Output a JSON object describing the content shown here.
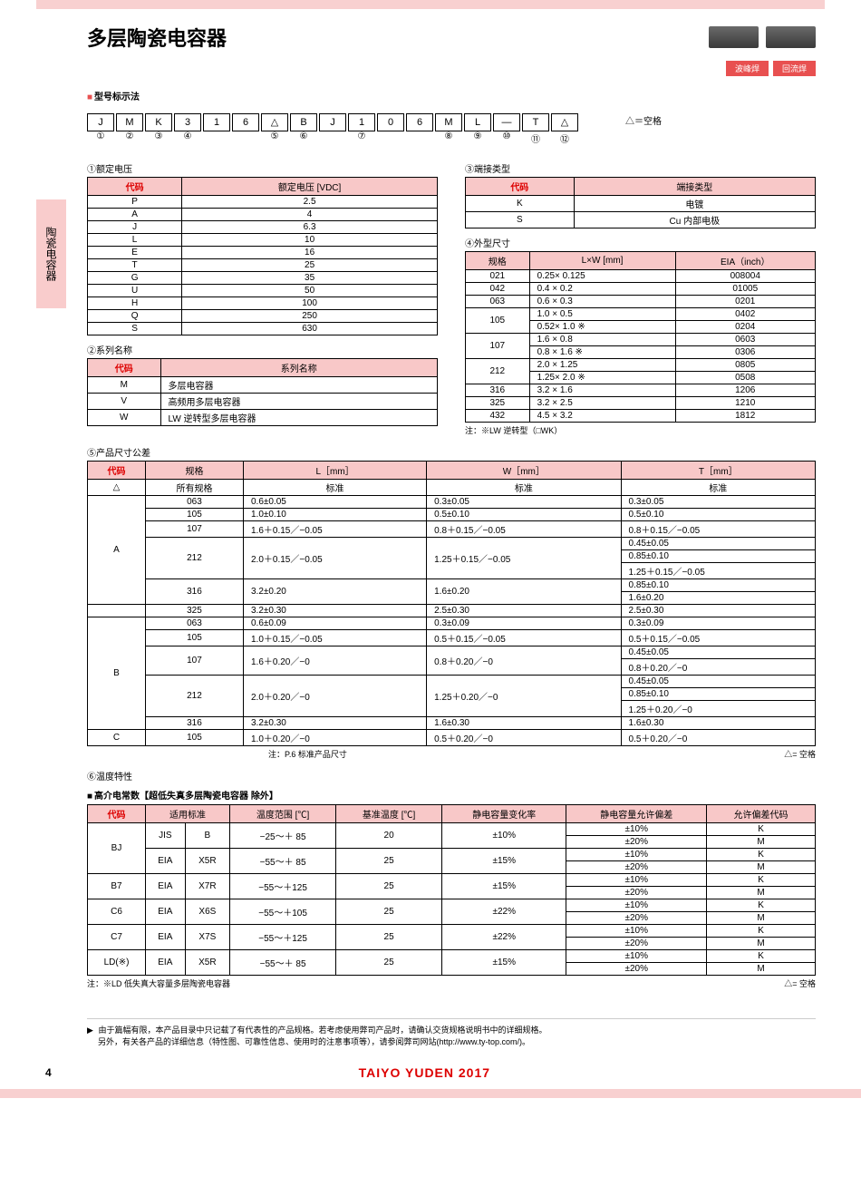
{
  "title": "多层陶瓷电容器",
  "badges": [
    "波峰焊",
    "回流焊"
  ],
  "sideTab": "陶瓷电容器",
  "sectionPartNo": "型号标示法",
  "partBoxes": [
    "J",
    "M",
    "K",
    "3",
    "1",
    "6",
    "△",
    "B",
    "J",
    "1",
    "0",
    "6",
    "M",
    "L",
    "—",
    "T",
    "△"
  ],
  "partNums": [
    "①",
    "②",
    "③",
    "④",
    "",
    "",
    "⑤",
    "⑥",
    "",
    "⑦",
    "",
    "",
    "⑧",
    "⑨",
    "⑩",
    "⑪",
    "⑫"
  ],
  "noteBlank": "△＝空格",
  "t1": {
    "title": "①额定电压",
    "headers": [
      "代码",
      "额定电压 [VDC]"
    ],
    "rows": [
      [
        "P",
        "2.5"
      ],
      [
        "A",
        "4"
      ],
      [
        "J",
        "6.3"
      ],
      [
        "L",
        "10"
      ],
      [
        "E",
        "16"
      ],
      [
        "T",
        "25"
      ],
      [
        "G",
        "35"
      ],
      [
        "U",
        "50"
      ],
      [
        "H",
        "100"
      ],
      [
        "Q",
        "250"
      ],
      [
        "S",
        "630"
      ]
    ]
  },
  "t2": {
    "title": "②系列名称",
    "headers": [
      "代码",
      "系列名称"
    ],
    "rows": [
      [
        "M",
        "多层电容器"
      ],
      [
        "V",
        "高频用多层电容器"
      ],
      [
        "W",
        "LW 逆转型多层电容器"
      ]
    ]
  },
  "t3": {
    "title": "③端接类型",
    "headers": [
      "代码",
      "端接类型"
    ],
    "rows": [
      [
        "K",
        "电镀"
      ],
      [
        "S",
        "Cu 内部电极"
      ]
    ]
  },
  "t4": {
    "title": "④外型尺寸",
    "headers": [
      "规格",
      "L×W [mm]",
      "EIA（inch）"
    ],
    "rows": [
      [
        "021",
        "0.25× 0.125",
        "008004"
      ],
      [
        "042",
        "0.4 × 0.2",
        "01005"
      ],
      [
        "063",
        "0.6 × 0.3",
        "0201"
      ],
      [
        "105",
        "1.0 × 0.5",
        "0402"
      ],
      [
        "",
        "0.52× 1.0 ※",
        "0204"
      ],
      [
        "107",
        "1.6 × 0.8",
        "0603"
      ],
      [
        "",
        "0.8 × 1.6 ※",
        "0306"
      ],
      [
        "212",
        "2.0 × 1.25",
        "0805"
      ],
      [
        "",
        "1.25× 2.0 ※",
        "0508"
      ],
      [
        "316",
        "3.2 × 1.6",
        "1206"
      ],
      [
        "325",
        "3.2 × 2.5",
        "1210"
      ],
      [
        "432",
        "4.5 × 3.2",
        "1812"
      ]
    ],
    "note": "注：※LW 逆转型（□WK）"
  },
  "t5": {
    "title": "⑤产品尺寸公差",
    "headers": [
      "代码",
      "规格",
      "L［mm］",
      "W［mm］",
      "T［mm］"
    ],
    "sub": [
      "",
      "所有规格",
      "标准",
      "标准",
      "标准"
    ],
    "note1": "注：P.6 标准产品尺寸",
    "note2": "△= 空格"
  },
  "t6": {
    "title": "⑥温度特性",
    "subtitle": "高介电常数【超低失真多层陶瓷电容器 除外】",
    "headers": [
      "代码",
      "适用标准",
      "温度范围 [℃]",
      "基准温度 [℃]",
      "静电容量变化率",
      "静电容量允许偏差",
      "允许偏差代码"
    ],
    "note": "注：※LD 低失真大容量多层陶瓷电容器",
    "note2": "△= 空格"
  },
  "footerNote1": "由于篇幅有限，本产品目录中只记载了有代表性的产品规格。若考虑使用弊司产品时，请确认交货规格说明书中的详细规格。",
  "footerNote2": "另外，有关各产品的详细信息（特性图、可靠性信息、使用时的注意事项等），请参阅弊司网站(http://www.ty-top.com/)。",
  "pageNum": "4",
  "brand": "TAIYO YUDEN  2017"
}
